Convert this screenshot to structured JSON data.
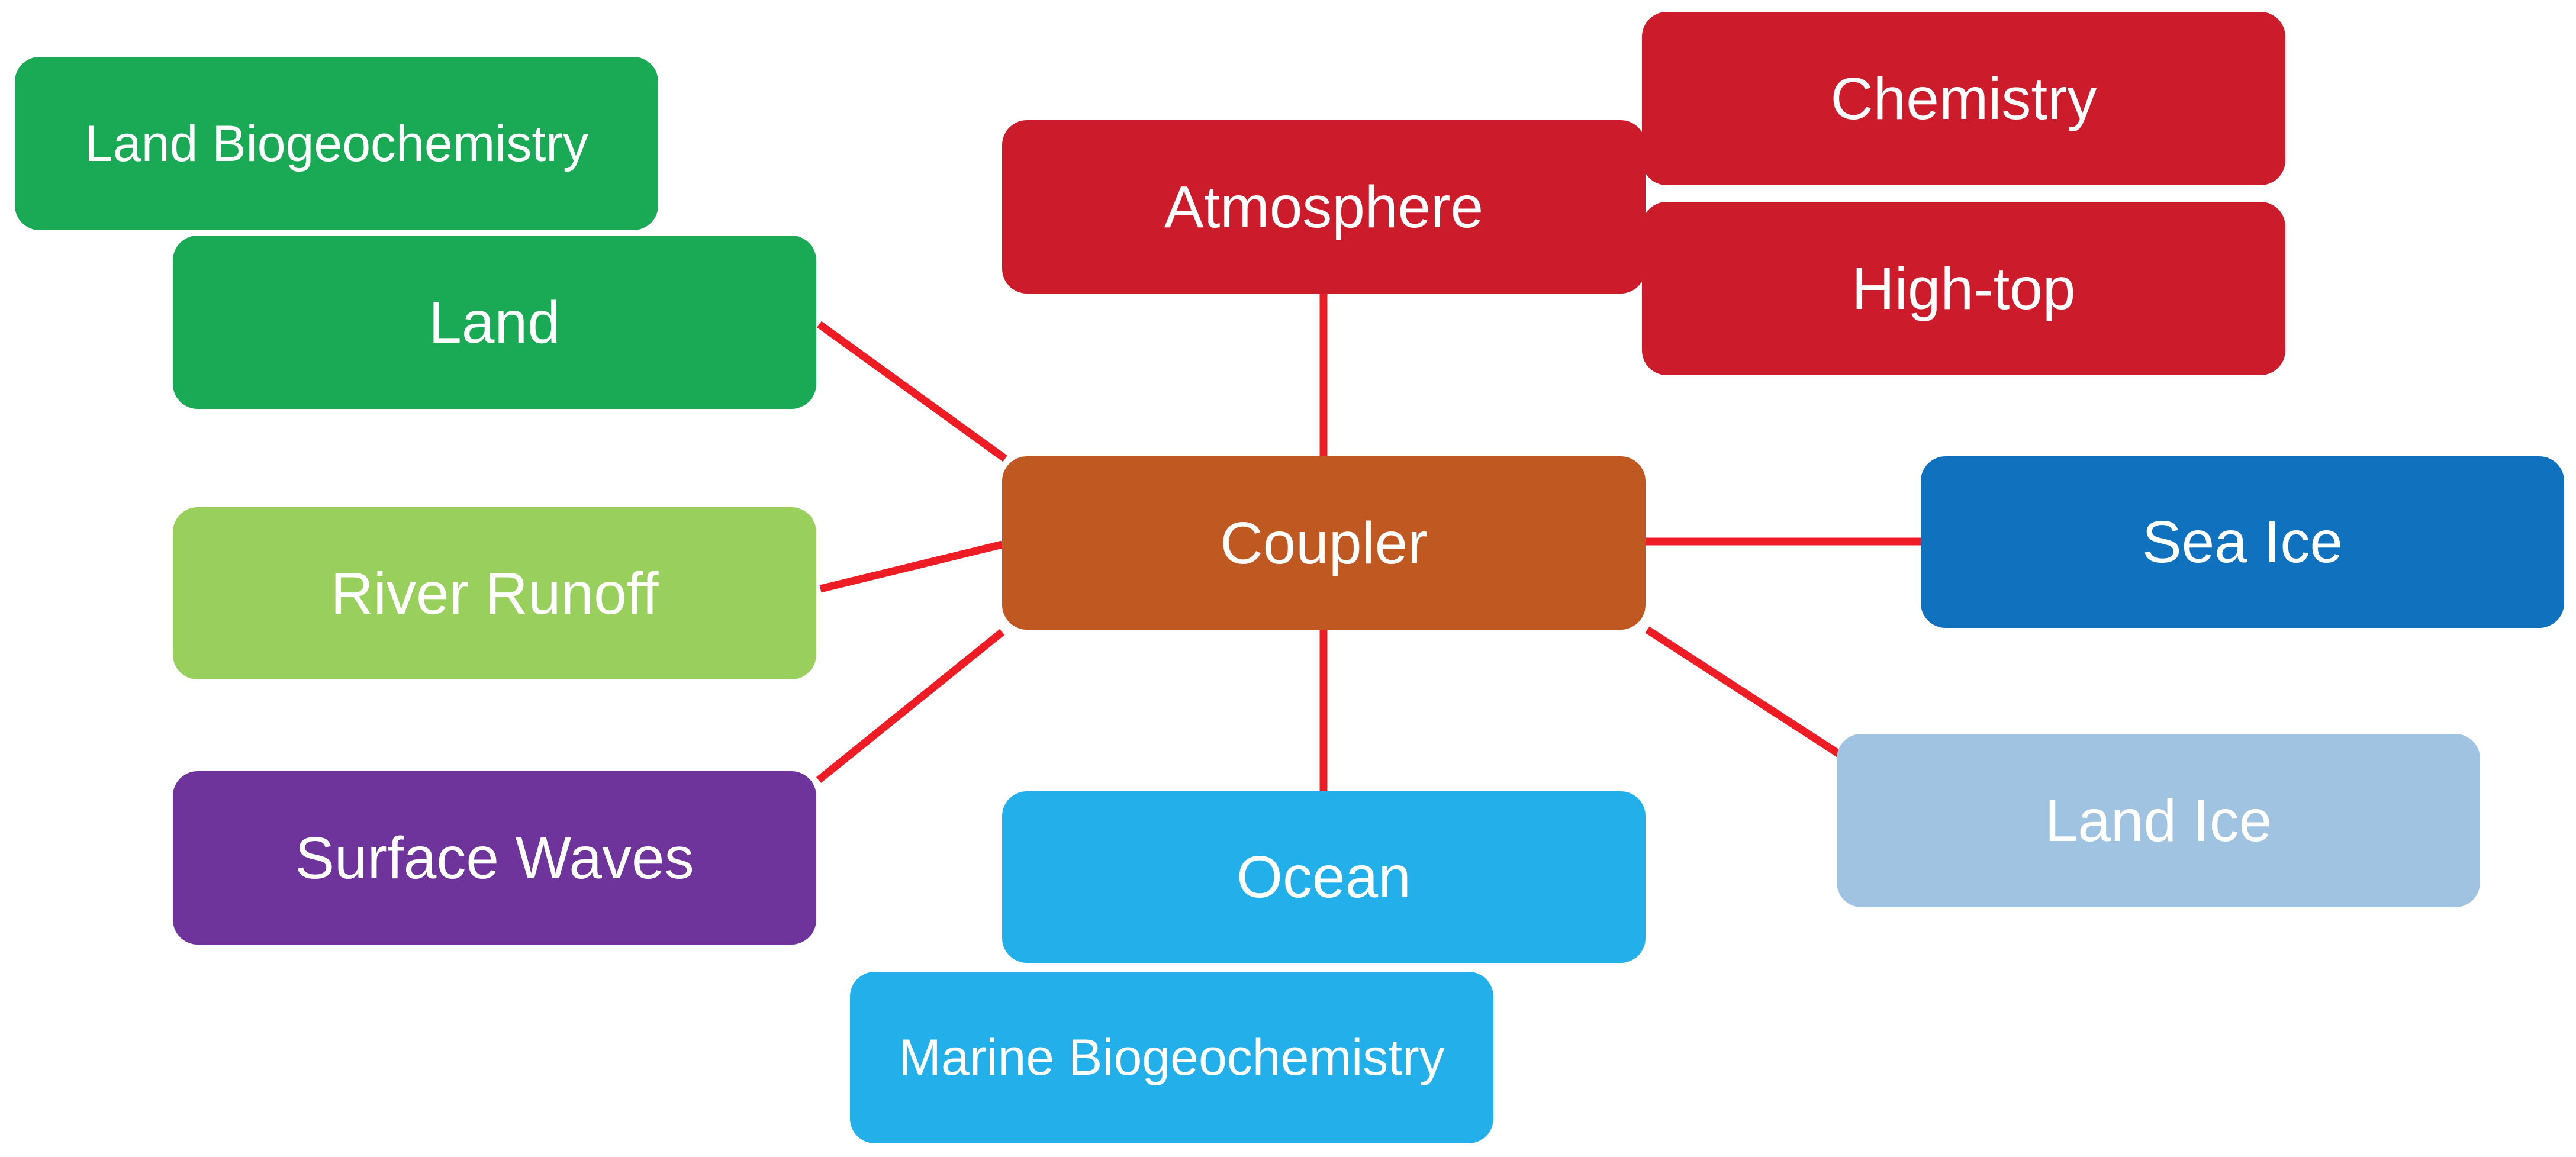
{
  "diagram": {
    "nodes": {
      "land_biogeochemistry": {
        "label": "Land Biogeochemistry",
        "color": "#1aaa55"
      },
      "land": {
        "label": "Land",
        "color": "#1aaa55"
      },
      "river_runoff": {
        "label": "River Runoff",
        "color": "#99cf5d"
      },
      "surface_waves": {
        "label": "Surface Waves",
        "color": "#6f339c"
      },
      "atmosphere": {
        "label": "Atmosphere",
        "color": "#cc1b2b"
      },
      "chemistry": {
        "label": "Chemistry",
        "color": "#cc1b2b"
      },
      "high_top": {
        "label": "High-top",
        "color": "#cc1b2b"
      },
      "coupler": {
        "label": "Coupler",
        "color": "#c05822"
      },
      "sea_ice": {
        "label": "Sea Ice",
        "color": "#1071be"
      },
      "land_ice": {
        "label": "Land Ice",
        "color": "#a0c3e2"
      },
      "ocean": {
        "label": "Ocean",
        "color": "#22afea"
      },
      "marine_biogeochemistry": {
        "label": "Marine Biogeochemistry",
        "color": "#22afea"
      }
    },
    "connections": [
      {
        "from": "coupler",
        "to": "land",
        "direction": "both"
      },
      {
        "from": "coupler",
        "to": "river_runoff",
        "direction": "both"
      },
      {
        "from": "coupler",
        "to": "surface_waves",
        "direction": "both"
      },
      {
        "from": "coupler",
        "to": "atmosphere",
        "direction": "both"
      },
      {
        "from": "coupler",
        "to": "ocean",
        "direction": "both"
      },
      {
        "from": "coupler",
        "to": "sea_ice",
        "direction": "both"
      },
      {
        "from": "coupler",
        "to": "land_ice",
        "direction": "both"
      }
    ],
    "arrow_color": "#ee1c25"
  }
}
